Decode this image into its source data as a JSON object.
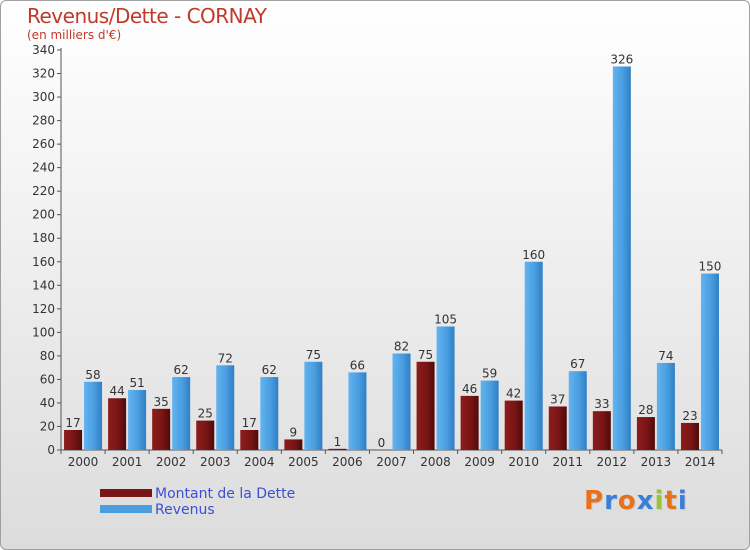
{
  "header": {
    "title": "Revenus/Dette - CORNAY",
    "subtitle": "(en milliers d'€)"
  },
  "colors": {
    "debt": "#7a1515",
    "revenue": "#4a9ee0",
    "title": "#c0392b",
    "legend_text": "#3a4fd6"
  },
  "chart_data": {
    "type": "bar",
    "title": "Revenus/Dette - CORNAY",
    "ylabel": "(en milliers d'€)",
    "xlabel": "",
    "ylim": [
      0,
      340
    ],
    "yticks": [
      0,
      20,
      40,
      60,
      80,
      100,
      120,
      140,
      160,
      180,
      200,
      220,
      240,
      260,
      280,
      300,
      320,
      340
    ],
    "grid": false,
    "legend_position": "bottom-left",
    "categories": [
      "2000",
      "2001",
      "2002",
      "2003",
      "2004",
      "2005",
      "2006",
      "2007",
      "2008",
      "2009",
      "2010",
      "2011",
      "2012",
      "2013",
      "2014"
    ],
    "series": [
      {
        "name": "Montant de la Dette",
        "values": [
          17,
          44,
          35,
          25,
          17,
          9,
          1,
          0,
          75,
          46,
          42,
          37,
          33,
          28,
          23
        ]
      },
      {
        "name": "Revenus",
        "values": [
          58,
          51,
          62,
          72,
          62,
          75,
          66,
          82,
          105,
          59,
          160,
          67,
          326,
          74,
          150
        ]
      }
    ]
  },
  "legend": {
    "items": [
      {
        "label": "Montant de la Dette"
      },
      {
        "label": "Revenus"
      }
    ]
  },
  "logo": {
    "text": "Proxiti",
    "letter_colors": [
      "#e8711c",
      "#3a7fd6",
      "#e8711c",
      "#3a7fd6",
      "#9bc33a",
      "#e8711c",
      "#3a7fd6"
    ]
  }
}
